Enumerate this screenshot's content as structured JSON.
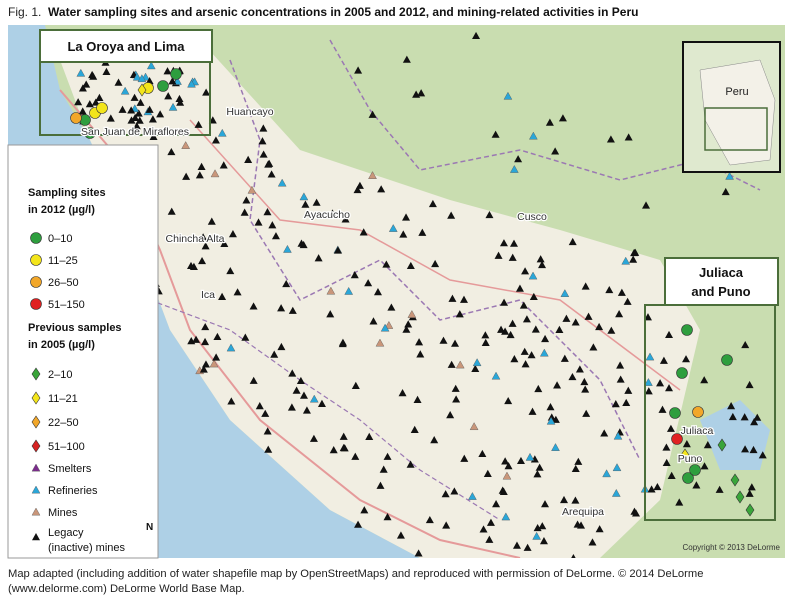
{
  "figure": {
    "label": "Fig. 1.",
    "title": "Water sampling sites and arsenic concentrations in 2005 and 2012, and mining-related activities in Peru"
  },
  "insets": {
    "la_oroya": "La Oroya and Lima",
    "juliaca": [
      "Juliaca",
      "and Puno"
    ],
    "overview": "Peru"
  },
  "places": [
    "Huancayo",
    "San Juan de Miraflores",
    "Ayacucho",
    "Chincha Alta",
    "Ica",
    "Cusco",
    "Juliaca",
    "Puno",
    "Arequipa"
  ],
  "legend": {
    "sites_title": [
      "Sampling sites",
      "in 2012 (µg/l)"
    ],
    "sites": [
      "0–10",
      "11–25",
      "26–50",
      "51–150"
    ],
    "previous_title": [
      "Previous samples",
      "in 2005 (µg/l)"
    ],
    "previous": [
      "2–10",
      "11–21",
      "22–50",
      "51–100"
    ],
    "other": [
      "Smelters",
      "Refineries",
      "Mines"
    ],
    "legacy": [
      "Legacy",
      "(inactive) mines"
    ]
  },
  "north": "N",
  "copyright": "Copyright © 2013 DeLorme",
  "caption": "Map adapted (including addition of water shapefile map by OpenStreetMaps) and reproduced with permission of DeLorme. © 2014 DeLorme (www.delorme.com) DeLorme World Base Map."
}
